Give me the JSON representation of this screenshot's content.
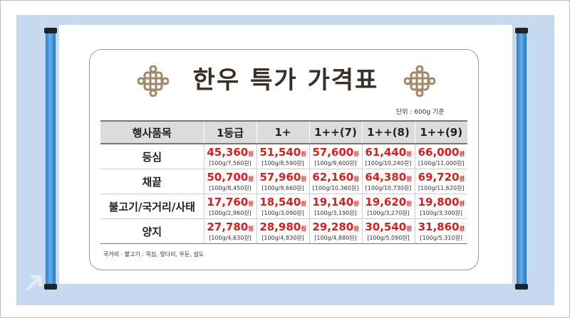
{
  "title": "한우 특가 가격표",
  "unit_note": "단위 : 600g 기준",
  "headers": [
    "행사품목",
    "1등급",
    "1+",
    "1++(7)",
    "1++(8)",
    "1++(9)"
  ],
  "rows": [
    {
      "item": "등심",
      "prices": [
        [
          "45,360",
          "[100g/7,560원]"
        ],
        [
          "51,540",
          "[100g/8,590원]"
        ],
        [
          "57,600",
          "[100g/9,600원]"
        ],
        [
          "61,440",
          "[100g/10,240원]"
        ],
        [
          "66,000",
          "[100g/11,000원]"
        ]
      ]
    },
    {
      "item": "채끝",
      "prices": [
        [
          "50,700",
          "[100g/8,450원]"
        ],
        [
          "57,960",
          "[100g/9,660원]"
        ],
        [
          "62,160",
          "[100g/10,360원]"
        ],
        [
          "64,380",
          "[100g/10,730원]"
        ],
        [
          "69,720",
          "[100g/11,620원]"
        ]
      ]
    },
    {
      "item": "불고기/국거리/사태",
      "prices": [
        [
          "17,760",
          "[100g/2,960원]"
        ],
        [
          "18,540",
          "[100g/3,090원]"
        ],
        [
          "19,140",
          "[100g/3,190원]"
        ],
        [
          "19,620",
          "[100g/3,270원]"
        ],
        [
          "19,800",
          "[100g/3,300원]"
        ]
      ]
    },
    {
      "item": "양지",
      "prices": [
        [
          "27,780",
          "[100g/4,630원]"
        ],
        [
          "28,980",
          "[100g/4,830원]"
        ],
        [
          "29,280",
          "[100g/4,880원]"
        ],
        [
          "30,540",
          "[100g/5,090원]"
        ],
        [
          "31,860",
          "[100g/5,310원]"
        ]
      ]
    }
  ],
  "currency_suffix": "원",
  "footnote": "국거리 · 불고기 : 목심, 앞다리, 우둔, 설도",
  "colors": {
    "price": "#d61f1f",
    "header_bg": "#dcdcdc",
    "background": "#c7d9ee",
    "rod": "#3a8ad6",
    "title": "#3a2e25",
    "knot": "#a08868"
  },
  "icons": [
    "knot-ornament-icon",
    "arrow-decoration-icon"
  ]
}
